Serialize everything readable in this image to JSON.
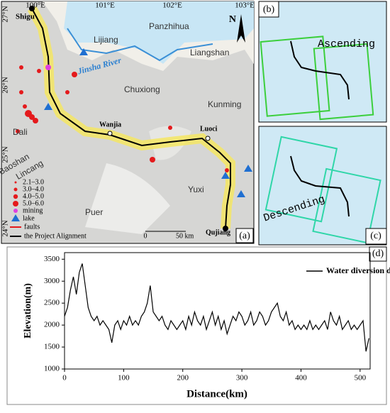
{
  "map": {
    "panel_a": "(a)",
    "panel_b": "(b)",
    "panel_c": "(c)",
    "north": "N",
    "lon_ticks": [
      "100°E",
      "101°E",
      "102°E",
      "103°E"
    ],
    "lat_ticks": [
      "27°N",
      "26°N",
      "25°N",
      "24°N"
    ],
    "places": {
      "shigu": "Shigu",
      "lijiang": "Lijiang",
      "panzhihua": "Panzhihua",
      "liangshan": "Liangshan",
      "river": "Jinsha River",
      "kunming": "Kunming",
      "chuxiong": "Chuxiong",
      "dali": "Dali",
      "wanjia": "Wanjia",
      "luoci": "Luoci",
      "baoshan": "Baoshan",
      "lincang": "Lincang",
      "puer": "Puer",
      "yuxi": "Yuxi",
      "qujiang": "Qujiang"
    },
    "legend": [
      "2.1–3.0",
      "3.0–4.0",
      "4.0–5.0",
      "5.0–6.0",
      "mining",
      "lake",
      "faults",
      "the Project Alignment"
    ],
    "scale": [
      "0",
      "50 km"
    ],
    "ascending": "Ascending",
    "descending": "Descending"
  },
  "chart_data": {
    "type": "line",
    "panel": "(d)",
    "xlabel": "Distance(km)",
    "ylabel": "Elevation(m)",
    "xlim": [
      0,
      517
    ],
    "ylim": [
      1000,
      3650
    ],
    "xticks": [
      0,
      100,
      200,
      300,
      400,
      500
    ],
    "yticks": [
      1000,
      1500,
      2000,
      2500,
      3000,
      3500
    ],
    "x": [
      0,
      5,
      10,
      15,
      20,
      25,
      30,
      35,
      40,
      45,
      50,
      55,
      60,
      65,
      70,
      75,
      80,
      85,
      90,
      95,
      100,
      105,
      110,
      115,
      120,
      125,
      130,
      135,
      140,
      145,
      150,
      155,
      160,
      165,
      170,
      175,
      180,
      185,
      190,
      195,
      200,
      205,
      210,
      215,
      220,
      225,
      230,
      235,
      240,
      245,
      250,
      255,
      260,
      265,
      270,
      275,
      280,
      285,
      290,
      295,
      300,
      305,
      310,
      315,
      320,
      325,
      330,
      335,
      340,
      345,
      350,
      355,
      360,
      365,
      370,
      375,
      380,
      385,
      390,
      395,
      400,
      405,
      410,
      415,
      420,
      425,
      430,
      435,
      440,
      445,
      450,
      455,
      460,
      465,
      470,
      475,
      480,
      485,
      490,
      495,
      500,
      505,
      510,
      515
    ],
    "series": [
      {
        "name": "Water diversion direction",
        "color": "#000000",
        "values": [
          2200,
          2400,
          2800,
          3100,
          2700,
          3200,
          3400,
          2900,
          2400,
          2200,
          2100,
          2200,
          2000,
          2100,
          2000,
          1900,
          1600,
          2000,
          2100,
          1900,
          2100,
          2000,
          2200,
          2000,
          2100,
          2000,
          2200,
          2300,
          2500,
          2900,
          2300,
          2200,
          2100,
          2200,
          2000,
          1900,
          2100,
          2000,
          1900,
          2000,
          2100,
          1900,
          2200,
          2000,
          2300,
          2100,
          2000,
          2200,
          1900,
          2100,
          2300,
          2000,
          2200,
          1900,
          2100,
          1800,
          2000,
          2200,
          2100,
          2300,
          2200,
          2000,
          2100,
          2300,
          2000,
          2100,
          2300,
          2200,
          2000,
          2100,
          2300,
          2400,
          2500,
          2200,
          2100,
          2300,
          2000,
          2100,
          1900,
          2000,
          1900,
          2000,
          1900,
          2100,
          1900,
          2000,
          1900,
          2000,
          2100,
          1900,
          2300,
          2100,
          2000,
          2200,
          1900,
          2000,
          2100,
          1900,
          2000,
          1900,
          2000,
          2100,
          1400,
          1700
        ]
      }
    ]
  }
}
